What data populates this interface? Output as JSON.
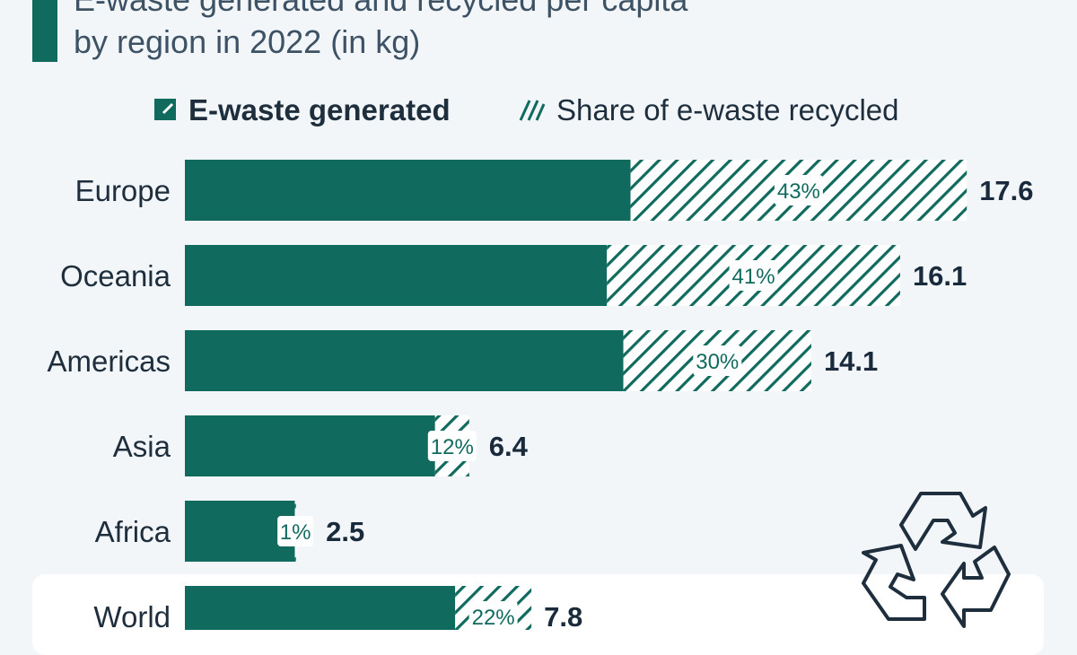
{
  "colors": {
    "generated": "#106a5e",
    "label_bg": "#ffffff",
    "text_dark": "#182a3b",
    "title_color": "#3d5264"
  },
  "chart_data": {
    "type": "bar",
    "orientation": "horizontal",
    "title_lines": [
      "E-waste generated and recycled per capita",
      "by region in 2022 (in kg)"
    ],
    "legend": {
      "generated": "E-waste generated",
      "recycled": "Share of e-waste recycled",
      "placement": "top"
    },
    "categories": [
      "Europe",
      "Oceania",
      "Americas",
      "Asia",
      "Africa",
      "World"
    ],
    "series": [
      {
        "name": "E-waste generated",
        "values": [
          17.6,
          16.1,
          14.1,
          6.4,
          2.5,
          7.8
        ],
        "value_labels": [
          "17.6",
          "16.1",
          "14.1",
          "6.4",
          "2.5",
          "7.8"
        ]
      },
      {
        "name": "Share of e-waste recycled",
        "values": [
          43,
          41,
          30,
          12,
          1,
          22
        ],
        "value_labels": [
          "43%",
          "41%",
          "30%",
          "12%",
          "1%",
          "22%"
        ]
      }
    ],
    "grid": false
  },
  "icons": {
    "recycle": "recycle-icon"
  }
}
